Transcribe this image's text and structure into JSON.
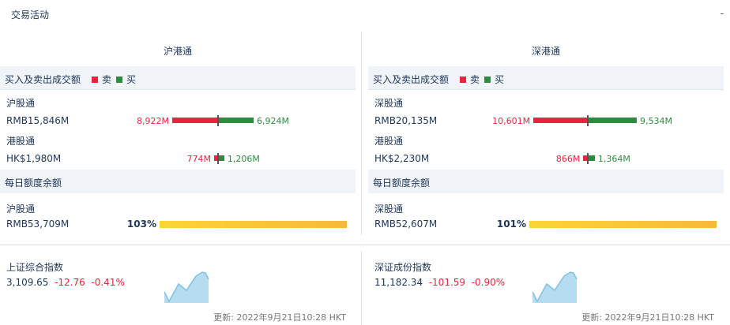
{
  "header": {
    "title": "交易活动",
    "collapse": "-"
  },
  "legend": {
    "sell": "卖",
    "buy": "买",
    "sell_color": "#e8253f",
    "buy_color": "#2e8b3e"
  },
  "columns": [
    {
      "title": "沪港通",
      "turnover_label": "买入及卖出成交额",
      "rows": [
        {
          "name": "沪股通",
          "total": "RMB15,846M",
          "sell": "8,922M",
          "buy": "6,924M",
          "sell_v": 8922,
          "buy_v": 6924
        },
        {
          "name": "港股通",
          "total": "HK$1,980M",
          "sell": "774M",
          "buy": "1,206M",
          "sell_v": 774,
          "buy_v": 1206
        }
      ],
      "quota_label": "每日额度余额",
      "quota": {
        "name": "沪股通",
        "value": "RMB53,709M",
        "pct": "103%",
        "pct_v": 103
      }
    },
    {
      "title": "深港通",
      "turnover_label": "买入及卖出成交额",
      "rows": [
        {
          "name": "深股通",
          "total": "RMB20,135M",
          "sell": "10,601M",
          "buy": "9,534M",
          "sell_v": 10601,
          "buy_v": 9534
        },
        {
          "name": "港股通",
          "total": "HK$2,230M",
          "sell": "866M",
          "buy": "1,364M",
          "sell_v": 866,
          "buy_v": 1364
        }
      ],
      "quota_label": "每日额度余额",
      "quota": {
        "name": "深股通",
        "value": "RMB52,607M",
        "pct": "101%",
        "pct_v": 101
      }
    }
  ],
  "indices": [
    {
      "name": "上证综合指数",
      "value": "3,109.65",
      "change": "-12.76",
      "pct": "-0.41%",
      "updated": "更新: 2022年9月21日10:28 HKT"
    },
    {
      "name": "深证成份指数",
      "value": "11,182.34",
      "change": "-101.59",
      "pct": "-0.90%",
      "updated": "更新: 2022年9月21日10:28 HKT"
    }
  ]
}
